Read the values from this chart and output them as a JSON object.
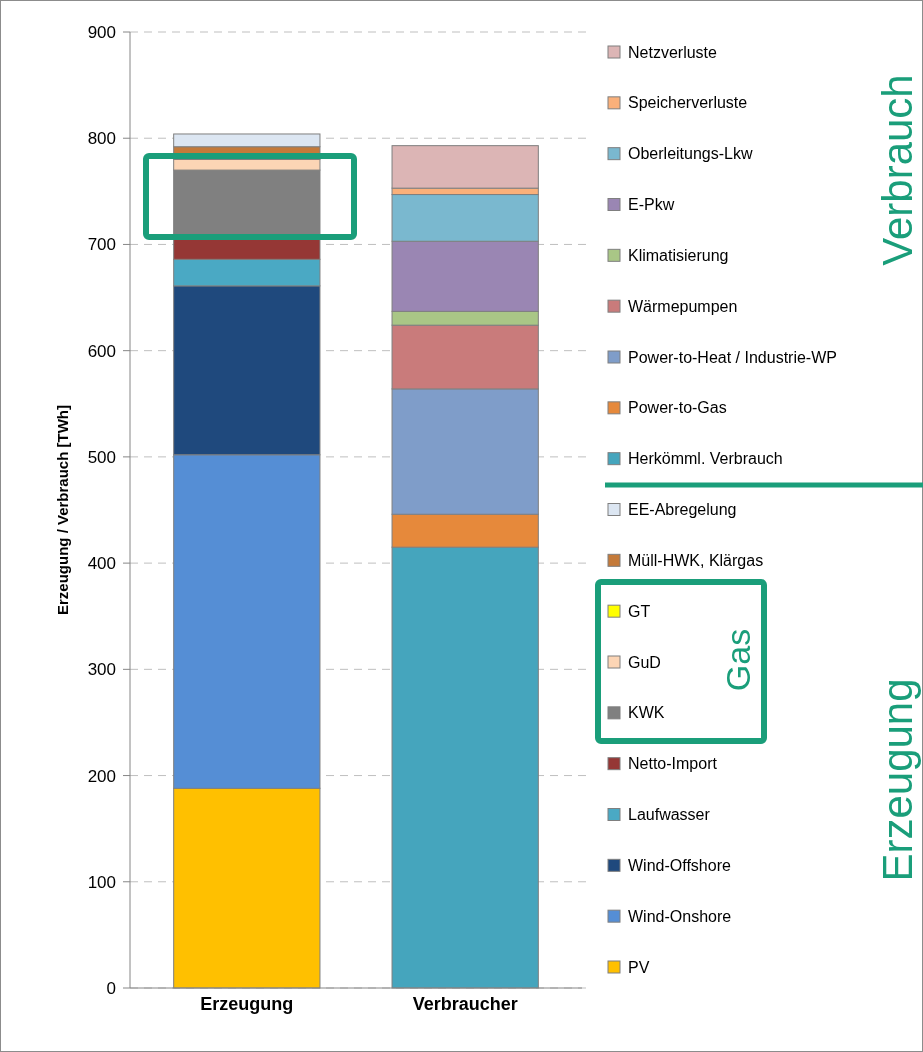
{
  "chart_data": {
    "type": "bar",
    "stacked": true,
    "ylabel": "Erzeugung / Verbrauch [TWh]",
    "categories": [
      "Erzeugung",
      "Verbraucher"
    ],
    "ylim": [
      0,
      900
    ],
    "yticks": [
      0,
      100,
      200,
      300,
      400,
      500,
      600,
      700,
      800,
      900
    ],
    "grid": "y",
    "legend": "right",
    "annotations": [
      "Verbrauch",
      "Erzeugung",
      "Gas"
    ],
    "series": [
      {
        "name": "PV",
        "color": "#ffc000",
        "values": [
          188,
          null
        ]
      },
      {
        "name": "Wind-Onshore",
        "color": "#558ed5",
        "values": [
          314,
          null
        ]
      },
      {
        "name": "Wind-Offshore",
        "color": "#1f497d",
        "values": [
          159,
          null
        ]
      },
      {
        "name": "Laufwasser",
        "color": "#4aa9c4",
        "values": [
          25,
          null
        ]
      },
      {
        "name": "Netto-Import",
        "color": "#953735",
        "values": [
          19,
          null
        ]
      },
      {
        "name": "KWK",
        "color": "#808080",
        "values": [
          65,
          null
        ]
      },
      {
        "name": "GuD",
        "color": "#fcd5b5",
        "values": [
          10,
          null
        ]
      },
      {
        "name": "GT",
        "color": "#ffff00",
        "values": [
          0,
          null
        ]
      },
      {
        "name": "Müll-HWK, Klärgas",
        "color": "#c47a3a",
        "values": [
          12,
          null
        ]
      },
      {
        "name": "EE-Abregelung",
        "color": "#dce6f2",
        "values": [
          12,
          null
        ]
      },
      {
        "name": "Herkömml. Verbrauch",
        "color": "#45a5bd",
        "values": [
          null,
          415
        ]
      },
      {
        "name": "Power-to-Gas",
        "color": "#e6893b",
        "values": [
          null,
          31
        ]
      },
      {
        "name": "Power-to-Heat / Industrie-WP",
        "color": "#7f9dc9",
        "values": [
          null,
          118
        ]
      },
      {
        "name": "Wärmepumpen",
        "color": "#c97b7b",
        "values": [
          null,
          60
        ]
      },
      {
        "name": "Klimatisierung",
        "color": "#a9c686",
        "values": [
          null,
          13
        ]
      },
      {
        "name": "E-Pkw",
        "color": "#9a86b3",
        "values": [
          null,
          66
        ]
      },
      {
        "name": "Oberleitungs-Lkw",
        "color": "#7ab8cf",
        "values": [
          null,
          44
        ]
      },
      {
        "name": "Speicherverluste",
        "color": "#fab07a",
        "values": [
          null,
          6
        ]
      },
      {
        "name": "Netzverluste",
        "color": "#dcb5b5",
        "values": [
          null,
          40
        ]
      }
    ]
  }
}
